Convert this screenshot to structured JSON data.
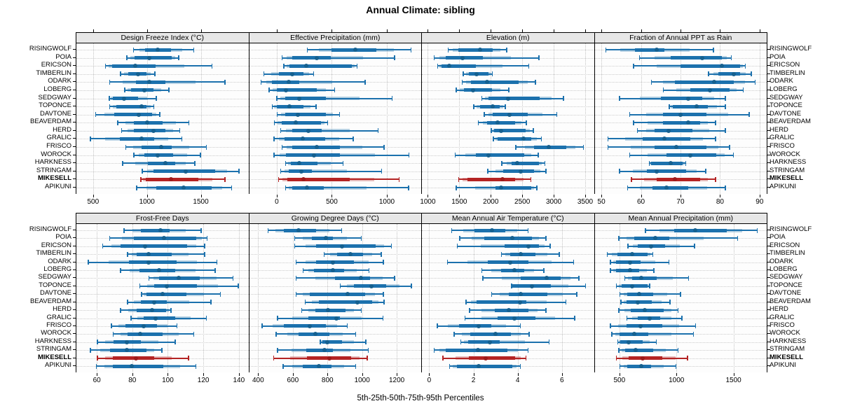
{
  "title": "Annual Climate: sibling",
  "subtitle": "5th-25th-50th-75th-95th Percentiles",
  "stations": [
    "RISINGWOLF",
    "POIA",
    "ERICSON",
    "TIMBERLIN",
    "ODARK",
    "LOBERG",
    "SEDGWAY",
    "TOPONCE",
    "DAVTONE",
    "BEAVERDAM",
    "HERD",
    "GRALIC",
    "FRISCO",
    "WOROCK",
    "HARKNESS",
    "STRINGAM",
    "MIKESELL",
    "APIKUNI"
  ],
  "highlight_station": "MIKESELL",
  "colors": {
    "series": "#1c71ad",
    "series_dot": "#15608f",
    "series_light": "rgba(28,113,173,0.30)",
    "highlight": "#b42323",
    "highlight_dot": "#9c1b1b",
    "highlight_light": "rgba(180,35,35,0.30)",
    "grid": "#c9c9c9",
    "header_bg": "#e7e7e7"
  },
  "chart_data": {
    "type": "dot-whisker-percentiles",
    "percentile_labels": [
      "5th",
      "25th",
      "50th",
      "75th",
      "95th"
    ],
    "legend_note": "one row per station; dot = median, thick bar = 25th-75th, light bar ~ 10th-90th, thin line + caps = 5th-95th",
    "panels": [
      {
        "title": "Design Freeze Index (°C)",
        "grid_row": 0,
        "min": 345,
        "max": 1942,
        "ticks": [
          500,
          1000,
          1500
        ],
        "values": [
          [
            870,
            985,
            1100,
            1220,
            1440
          ],
          [
            810,
            885,
            1020,
            1230,
            1300
          ],
          [
            610,
            680,
            890,
            1080,
            1610
          ],
          [
            750,
            825,
            920,
            995,
            1080
          ],
          [
            650,
            900,
            1020,
            1170,
            1730
          ],
          [
            790,
            855,
            975,
            1060,
            1210
          ],
          [
            645,
            685,
            785,
            920,
            1090
          ],
          [
            650,
            715,
            950,
            995,
            1070
          ],
          [
            520,
            695,
            925,
            1050,
            1125
          ],
          [
            725,
            880,
            1005,
            1145,
            1395
          ],
          [
            760,
            880,
            1060,
            1170,
            1310
          ],
          [
            470,
            750,
            950,
            1070,
            1330
          ],
          [
            800,
            950,
            1135,
            1230,
            1555
          ],
          [
            875,
            975,
            1100,
            1245,
            1500
          ],
          [
            770,
            1010,
            1170,
            1265,
            1450
          ],
          [
            950,
            1060,
            1360,
            1630,
            1860
          ],
          [
            940,
            990,
            1225,
            1480,
            1730
          ],
          [
            900,
            1085,
            1340,
            1600,
            1790
          ]
        ]
      },
      {
        "title": "Effective Precipitation (mm)",
        "grid_row": 0,
        "min": -251,
        "max": 1312,
        "ticks": [
          0,
          500,
          1000
        ],
        "values": [
          [
            273,
            496,
            712,
            902,
            1226
          ],
          [
            43,
            138,
            362,
            489,
            1075
          ],
          [
            60,
            117,
            266,
            681,
            734
          ],
          [
            -123,
            21,
            138,
            245,
            340
          ],
          [
            -149,
            -43,
            106,
            202,
            809
          ],
          [
            -74,
            0,
            85,
            362,
            532
          ],
          [
            -4,
            74,
            202,
            447,
            1053
          ],
          [
            -47,
            0,
            117,
            245,
            362
          ],
          [
            0,
            74,
            192,
            447,
            574
          ],
          [
            -26,
            45,
            170,
            400,
            468
          ],
          [
            32,
            140,
            287,
            405,
            926
          ],
          [
            -30,
            70,
            235,
            440,
            700
          ],
          [
            43,
            138,
            362,
            574,
            979
          ],
          [
            -30,
            85,
            340,
            575,
            1205
          ],
          [
            74,
            128,
            202,
            372,
            606
          ],
          [
            32,
            106,
            223,
            319,
            957
          ],
          [
            11,
            96,
            245,
            660,
            1117
          ],
          [
            74,
            138,
            277,
            426,
            1202
          ]
        ]
      },
      {
        "title": "Elevation (m)",
        "grid_row": 0,
        "min": 906,
        "max": 3639,
        "ticks": [
          1000,
          1500,
          2000,
          2500,
          3000,
          3500
        ],
        "values": [
          [
            1315,
            1480,
            1835,
            2035,
            2260
          ],
          [
            1095,
            1280,
            1555,
            1870,
            2775
          ],
          [
            1150,
            1220,
            1335,
            1760,
            2610
          ],
          [
            1555,
            1650,
            1775,
            1960,
            2035
          ],
          [
            1535,
            1685,
            1945,
            2445,
            2720
          ],
          [
            1445,
            1575,
            1720,
            2020,
            2295
          ],
          [
            1850,
            1960,
            2275,
            2775,
            3165
          ],
          [
            1720,
            1835,
            2035,
            2145,
            2240
          ],
          [
            1890,
            2035,
            2295,
            2590,
            3055
          ],
          [
            1795,
            1945,
            2110,
            2390,
            2575
          ],
          [
            2000,
            2055,
            2165,
            2555,
            2685
          ],
          [
            2035,
            2110,
            2515,
            2645,
            2815
          ],
          [
            2390,
            2685,
            2925,
            3200,
            3480
          ],
          [
            1425,
            1760,
            1960,
            2535,
            2760
          ],
          [
            2165,
            2330,
            2425,
            2760,
            2870
          ],
          [
            1945,
            2200,
            2480,
            2685,
            2885
          ],
          [
            1480,
            1630,
            2185,
            2390,
            2645
          ],
          [
            1445,
            2070,
            2165,
            2645,
            2740
          ]
        ]
      },
      {
        "title": "Fraction of Annual PPT as Rain",
        "grid_row": 0,
        "min": 48.3,
        "max": 91.8,
        "ticks": [
          50,
          60,
          70,
          80,
          90
        ],
        "values": [
          [
            51,
            58.5,
            64,
            66,
            78.5
          ],
          [
            59.5,
            67.5,
            75.5,
            80.5,
            83
          ],
          [
            58,
            70,
            80.5,
            85,
            86.5
          ],
          [
            77,
            79.5,
            83.5,
            85,
            88
          ],
          [
            62.5,
            68.5,
            78.5,
            83.5,
            89
          ],
          [
            65.5,
            72.5,
            77.5,
            82.5,
            86
          ],
          [
            54.5,
            65,
            72,
            75.5,
            81.5
          ],
          [
            67,
            68,
            74,
            77,
            81.5
          ],
          [
            57,
            65.5,
            70,
            76.5,
            87.5
          ],
          [
            58,
            65.5,
            72,
            75,
            79
          ],
          [
            59,
            63.5,
            67,
            73,
            81.5
          ],
          [
            51.5,
            60.5,
            66,
            72.5,
            79
          ],
          [
            51.5,
            63.5,
            69,
            76.5,
            82.5
          ],
          [
            57,
            66.5,
            72.5,
            79,
            83.5
          ],
          [
            62,
            62.5,
            67.5,
            70.5,
            71.5
          ],
          [
            54.5,
            61.5,
            64,
            71.5,
            76.5
          ],
          [
            57.5,
            64,
            68.5,
            75,
            79
          ],
          [
            56.5,
            63,
            66.5,
            72,
            81.5
          ]
        ]
      },
      {
        "title": "Frost-Free Days",
        "grid_row": 1,
        "min": 48.5,
        "max": 145.4,
        "ticks": [
          60,
          80,
          100,
          120,
          140
        ],
        "values": [
          [
            75,
            85,
            96,
            101,
            119
          ],
          [
            67,
            81,
            98,
            116,
            122.5
          ],
          [
            63,
            73.5,
            87,
            111,
            121
          ],
          [
            77,
            82.5,
            89,
            102,
            121
          ],
          [
            55,
            78,
            89,
            105,
            128
          ],
          [
            73,
            84,
            95,
            104,
            127
          ],
          [
            89,
            95,
            106,
            118,
            137
          ],
          [
            84,
            92.5,
            99.5,
            116.5,
            140
          ],
          [
            85,
            88,
            97,
            110.5,
            130
          ],
          [
            77,
            85,
            92.5,
            99.5,
            124.5
          ],
          [
            73,
            82.5,
            91,
            99,
            102
          ],
          [
            79,
            86.5,
            93,
            104,
            122
          ],
          [
            68,
            76,
            86.5,
            94,
            105.5
          ],
          [
            69,
            77.5,
            84.5,
            97,
            115
          ],
          [
            60,
            69.5,
            77,
            85,
            104.5
          ],
          [
            56,
            67.5,
            77,
            88,
            97
          ],
          [
            60,
            69,
            82,
            92.5,
            112
          ],
          [
            59.5,
            69,
            79.5,
            97.5,
            116
          ]
        ]
      },
      {
        "title": "Growing Degree Days (°C)",
        "grid_row": 1,
        "min": 348,
        "max": 1341,
        "ticks": [
          400,
          600,
          800,
          1000,
          1200
        ],
        "values": [
          [
            454,
            548,
            635,
            736,
            884
          ],
          [
            608,
            709,
            790,
            830,
            998
          ],
          [
            608,
            736,
            884,
            1079,
            1173
          ],
          [
            777,
            857,
            934,
            1005,
            1113
          ],
          [
            615,
            736,
            830,
            951,
            1126
          ],
          [
            656,
            723,
            830,
            897,
            1043
          ],
          [
            615,
            844,
            992,
            1045,
            1191
          ],
          [
            871,
            951,
            1052,
            1140,
            1288
          ],
          [
            615,
            696,
            918,
            1019,
            1126
          ],
          [
            669,
            750,
            972,
            1059,
            1129
          ],
          [
            649,
            730,
            804,
            904,
            998
          ],
          [
            508,
            689,
            851,
            871,
            1123
          ],
          [
            420,
            548,
            696,
            790,
            918
          ],
          [
            501,
            635,
            730,
            810,
            965
          ],
          [
            756,
            770,
            797,
            884,
            1025
          ],
          [
            508,
            676,
            783,
            830,
            1039
          ],
          [
            487,
            682,
            810,
            938,
            1032
          ],
          [
            541,
            656,
            750,
            824,
            965
          ]
        ]
      },
      {
        "title": "Mean Annual Air Temperature (°C)",
        "grid_row": 1,
        "min": -0.33,
        "max": 7.45,
        "ticks": [
          0,
          2,
          4,
          6
        ],
        "values": [
          [
            1.0,
            2.05,
            2.85,
            3.45,
            4.5
          ],
          [
            1.35,
            2.5,
            3.75,
            4.65,
            5.3
          ],
          [
            1.25,
            3.4,
            4.5,
            4.95,
            5.5
          ],
          [
            3.25,
            3.65,
            4.15,
            4.8,
            5.9
          ],
          [
            0.8,
            2.65,
            3.65,
            4.5,
            6.55
          ],
          [
            2.35,
            3.25,
            3.85,
            4.3,
            5.2
          ],
          [
            2.4,
            4.15,
            5.3,
            5.95,
            6.8
          ],
          [
            3.7,
            3.75,
            4.65,
            5.5,
            7.1
          ],
          [
            2.8,
            3.6,
            4.15,
            5.35,
            6.7
          ],
          [
            1.65,
            2.15,
            4.1,
            4.4,
            6.2
          ],
          [
            1.8,
            2.95,
            3.6,
            4.5,
            5.3
          ],
          [
            1.6,
            3.1,
            3.85,
            4.8,
            6.6
          ],
          [
            0.35,
            1.35,
            2.25,
            2.8,
            4.15
          ],
          [
            1.1,
            1.85,
            3.0,
            3.7,
            4.55
          ],
          [
            1.4,
            1.75,
            2.75,
            3.2,
            5.45
          ],
          [
            0.2,
            0.75,
            2.2,
            3.55,
            4.5
          ],
          [
            0.6,
            1.8,
            2.55,
            3.9,
            4.4
          ],
          [
            0.9,
            1.25,
            2.25,
            3.75,
            4.15
          ]
        ]
      },
      {
        "title": "Mean Annual Precipitation (mm)",
        "grid_row": 1,
        "min": 283,
        "max": 1791,
        "ticks": [
          500,
          1000,
          1500
        ],
        "values": [
          [
            724,
            980,
            1163,
            1439,
            1714
          ],
          [
            490,
            633,
            816,
            939,
            1541
          ],
          [
            571,
            663,
            776,
            898,
            1163
          ],
          [
            388,
            480,
            612,
            745,
            796
          ],
          [
            418,
            469,
            592,
            684,
            939
          ],
          [
            418,
            469,
            592,
            673,
            806
          ],
          [
            541,
            612,
            694,
            827,
            1112
          ],
          [
            469,
            520,
            612,
            745,
            771
          ],
          [
            500,
            571,
            673,
            796,
            1041
          ],
          [
            510,
            561,
            663,
            786,
            949
          ],
          [
            490,
            602,
            724,
            888,
            1020
          ],
          [
            561,
            663,
            765,
            857,
            1051
          ],
          [
            418,
            561,
            684,
            878,
            1173
          ],
          [
            429,
            500,
            633,
            755,
            1153
          ],
          [
            480,
            510,
            582,
            704,
            827
          ],
          [
            490,
            551,
            643,
            796,
            1020
          ],
          [
            469,
            582,
            704,
            878,
            1102
          ],
          [
            500,
            571,
            694,
            776,
            1000
          ]
        ]
      }
    ]
  }
}
